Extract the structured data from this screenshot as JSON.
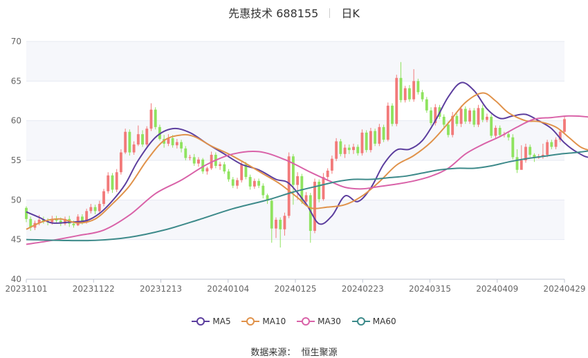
{
  "header": {
    "stock": "先惠技术 688155",
    "period": "日K"
  },
  "source": {
    "label": "数据来源：",
    "name": "恒生聚源"
  },
  "colors": {
    "up": "#f27a7a",
    "down": "#8fe35f",
    "grid": "#e6e9f2",
    "axis": "#999999"
  },
  "chart_data": {
    "type": "candlestick",
    "title": "先惠技术 688155 日K",
    "ylim": [
      40,
      70
    ],
    "yticks": [
      40,
      45,
      50,
      55,
      60,
      65,
      70
    ],
    "xticks": [
      "20231101",
      "20231122",
      "20231213",
      "20240104",
      "20240125",
      "20240223",
      "20240315",
      "20240409",
      "20240429"
    ],
    "legend": [
      "MA5",
      "MA10",
      "MA30",
      "MA60"
    ],
    "ma_colors": {
      "MA5": "#5c3e9e",
      "MA10": "#e0924a",
      "MA30": "#d962a8",
      "MA60": "#3d8a8a"
    },
    "candles": [
      [
        49.0,
        47.6,
        49.2,
        47.2
      ],
      [
        47.6,
        46.5,
        47.9,
        46.1
      ],
      [
        46.5,
        47.1,
        47.4,
        46.2
      ],
      [
        47.1,
        47.5,
        48.1,
        46.8
      ],
      [
        47.5,
        47.3,
        47.9,
        47.0
      ],
      [
        47.3,
        47.2,
        47.7,
        46.8
      ],
      [
        47.2,
        47.6,
        48.0,
        46.9
      ],
      [
        47.6,
        47.4,
        48.0,
        47.0
      ],
      [
        47.4,
        47.0,
        47.8,
        46.7
      ],
      [
        47.0,
        47.6,
        47.9,
        46.8
      ],
      [
        47.6,
        47.0,
        48.0,
        46.6
      ],
      [
        47.0,
        46.8,
        47.4,
        46.5
      ],
      [
        46.8,
        47.9,
        48.2,
        46.7
      ],
      [
        47.9,
        47.2,
        48.2,
        46.9
      ],
      [
        47.2,
        48.6,
        48.9,
        47.0
      ],
      [
        48.6,
        49.1,
        49.5,
        48.3
      ],
      [
        49.1,
        48.6,
        49.4,
        48.2
      ],
      [
        48.6,
        49.5,
        49.9,
        48.4
      ],
      [
        49.5,
        51.1,
        51.4,
        49.2
      ],
      [
        51.1,
        53.1,
        53.5,
        50.8
      ],
      [
        53.1,
        51.3,
        53.4,
        50.9
      ],
      [
        51.3,
        53.5,
        53.9,
        51.0
      ],
      [
        53.5,
        56.0,
        56.4,
        53.2
      ],
      [
        56.0,
        58.6,
        59.0,
        55.8
      ],
      [
        58.6,
        56.0,
        58.9,
        55.6
      ],
      [
        56.0,
        57.0,
        57.4,
        55.7
      ],
      [
        57.0,
        58.3,
        59.4,
        56.8
      ],
      [
        58.3,
        57.0,
        58.8,
        56.7
      ],
      [
        57.0,
        59.0,
        59.3,
        56.8
      ],
      [
        59.0,
        61.4,
        62.2,
        58.7
      ],
      [
        61.4,
        59.2,
        61.7,
        58.9
      ],
      [
        59.2,
        57.7,
        59.5,
        57.5
      ],
      [
        57.7,
        57.1,
        58.2,
        56.6
      ],
      [
        57.1,
        57.8,
        58.3,
        56.8
      ],
      [
        57.8,
        56.9,
        58.2,
        56.6
      ],
      [
        56.9,
        57.3,
        57.7,
        56.5
      ],
      [
        57.3,
        56.5,
        57.6,
        56.0
      ],
      [
        56.5,
        55.3,
        56.8,
        55.0
      ],
      [
        55.3,
        55.4,
        55.7,
        55.0
      ],
      [
        55.4,
        54.6,
        55.8,
        54.3
      ],
      [
        54.6,
        55.1,
        55.4,
        54.2
      ],
      [
        55.1,
        53.6,
        55.3,
        53.3
      ],
      [
        53.6,
        54.0,
        54.2,
        53.2
      ],
      [
        54.0,
        55.7,
        56.1,
        53.8
      ],
      [
        55.7,
        54.3,
        56.0,
        54.0
      ],
      [
        54.3,
        54.5,
        54.8,
        53.8
      ],
      [
        54.5,
        53.6,
        54.8,
        53.3
      ],
      [
        53.6,
        52.6,
        53.9,
        52.3
      ],
      [
        52.6,
        51.8,
        52.9,
        51.5
      ],
      [
        51.8,
        52.5,
        52.8,
        51.4
      ],
      [
        52.5,
        54.5,
        54.8,
        52.2
      ],
      [
        54.5,
        52.9,
        54.8,
        52.6
      ],
      [
        52.9,
        51.7,
        53.2,
        51.3
      ],
      [
        51.7,
        52.4,
        52.7,
        51.4
      ],
      [
        52.4,
        51.8,
        52.7,
        51.5
      ],
      [
        51.8,
        50.6,
        52.1,
        50.2
      ],
      [
        50.6,
        49.9,
        50.8,
        49.5
      ],
      [
        49.9,
        46.4,
        50.2,
        44.6
      ],
      [
        46.4,
        47.5,
        47.8,
        45.2
      ],
      [
        47.5,
        46.3,
        47.8,
        44.0
      ],
      [
        46.3,
        48.0,
        48.4,
        45.5
      ],
      [
        48.0,
        55.5,
        56.0,
        47.7
      ],
      [
        55.5,
        51.9,
        55.8,
        49.4
      ],
      [
        51.9,
        53.0,
        53.5,
        50.0
      ],
      [
        53.0,
        49.8,
        53.3,
        49.5
      ],
      [
        49.8,
        50.6,
        51.0,
        49.5
      ],
      [
        50.6,
        46.1,
        50.9,
        44.6
      ],
      [
        46.1,
        52.3,
        52.7,
        45.8
      ],
      [
        52.3,
        50.1,
        52.6,
        49.7
      ],
      [
        50.1,
        52.9,
        53.4,
        49.9
      ],
      [
        52.9,
        53.7,
        54.0,
        52.4
      ],
      [
        53.7,
        55.2,
        55.6,
        53.3
      ],
      [
        55.2,
        57.4,
        57.8,
        54.9
      ],
      [
        57.4,
        55.8,
        57.7,
        55.5
      ],
      [
        55.8,
        56.6,
        57.0,
        55.3
      ],
      [
        56.6,
        56.3,
        57.0,
        55.8
      ],
      [
        56.3,
        56.7,
        57.1,
        55.8
      ],
      [
        56.7,
        55.9,
        57.0,
        55.6
      ],
      [
        55.9,
        58.5,
        58.9,
        55.6
      ],
      [
        58.5,
        56.3,
        58.8,
        56.0
      ],
      [
        56.3,
        58.7,
        59.1,
        56.0
      ],
      [
        58.7,
        57.1,
        59.0,
        56.8
      ],
      [
        57.1,
        59.2,
        59.6,
        56.8
      ],
      [
        59.2,
        57.6,
        59.5,
        57.3
      ],
      [
        57.6,
        61.9,
        62.3,
        57.4
      ],
      [
        61.9,
        59.6,
        62.2,
        59.3
      ],
      [
        59.6,
        65.4,
        65.8,
        59.3
      ],
      [
        65.4,
        62.6,
        67.4,
        62.3
      ],
      [
        62.6,
        64.1,
        64.4,
        62.3
      ],
      [
        64.1,
        62.7,
        64.5,
        62.4
      ],
      [
        62.7,
        65.0,
        66.5,
        62.4
      ],
      [
        65.0,
        63.6,
        65.3,
        63.3
      ],
      [
        63.6,
        62.7,
        63.9,
        62.4
      ],
      [
        62.7,
        61.3,
        63.0,
        61.0
      ],
      [
        61.3,
        59.7,
        61.7,
        59.4
      ],
      [
        59.7,
        61.7,
        62.1,
        59.4
      ],
      [
        61.7,
        60.5,
        62.0,
        60.2
      ],
      [
        60.5,
        59.5,
        60.8,
        59.2
      ],
      [
        59.5,
        58.2,
        59.9,
        57.9
      ],
      [
        58.2,
        60.6,
        61.1,
        57.9
      ],
      [
        60.6,
        59.6,
        60.9,
        59.3
      ],
      [
        59.6,
        61.5,
        61.9,
        59.2
      ],
      [
        61.5,
        59.9,
        61.8,
        59.6
      ],
      [
        59.9,
        61.3,
        61.6,
        59.6
      ],
      [
        61.3,
        59.5,
        61.6,
        59.2
      ],
      [
        59.5,
        61.6,
        62.0,
        59.2
      ],
      [
        61.6,
        60.1,
        62.0,
        59.8
      ],
      [
        60.1,
        60.5,
        60.9,
        59.8
      ],
      [
        60.5,
        58.1,
        60.8,
        57.8
      ],
      [
        58.1,
        59.1,
        59.4,
        57.8
      ],
      [
        59.1,
        58.2,
        59.4,
        57.9
      ],
      [
        58.2,
        58.3,
        58.6,
        57.9
      ],
      [
        58.3,
        57.9,
        58.6,
        57.5
      ],
      [
        57.9,
        55.4,
        58.3,
        55.1
      ],
      [
        55.4,
        53.8,
        56.4,
        53.4
      ],
      [
        53.8,
        55.0,
        56.9,
        54.3
      ],
      [
        55.0,
        56.7,
        57.1,
        54.7
      ],
      [
        56.7,
        55.7,
        57.0,
        55.4
      ],
      [
        55.7,
        55.3,
        55.9,
        54.8
      ],
      [
        55.3,
        55.5,
        55.8,
        55.2
      ],
      [
        55.5,
        55.7,
        57.1,
        55.2
      ],
      [
        55.7,
        57.3,
        57.6,
        55.4
      ],
      [
        57.3,
        56.7,
        57.6,
        56.4
      ],
      [
        56.7,
        57.6,
        57.9,
        56.4
      ],
      [
        57.6,
        58.6,
        58.9,
        57.3
      ],
      [
        58.6,
        60.2,
        60.5,
        58.3
      ]
    ],
    "ma": {
      "MA5": [
        [
          0,
          48.5
        ],
        [
          3,
          47.8
        ],
        [
          6,
          47.1
        ],
        [
          10,
          47.2
        ],
        [
          14,
          47.4
        ],
        [
          17,
          48.3
        ],
        [
          20,
          49.9
        ],
        [
          23,
          52.0
        ],
        [
          26,
          55.0
        ],
        [
          30,
          57.9
        ],
        [
          34,
          59.0
        ],
        [
          38,
          58.5
        ],
        [
          42,
          57.1
        ],
        [
          46,
          55.8
        ],
        [
          50,
          54.5
        ],
        [
          54,
          53.8
        ],
        [
          58,
          52.6
        ],
        [
          61,
          52.1
        ],
        [
          65,
          49.5
        ],
        [
          68,
          47.0
        ],
        [
          71,
          48.0
        ],
        [
          74,
          50.5
        ],
        [
          77,
          49.8
        ],
        [
          80,
          51.5
        ],
        [
          83,
          54.5
        ],
        [
          86,
          56.3
        ],
        [
          89,
          56.4
        ],
        [
          92,
          57.5
        ],
        [
          95,
          60.0
        ],
        [
          98,
          63.0
        ],
        [
          101,
          64.8
        ],
        [
          104,
          63.8
        ],
        [
          107,
          61.5
        ],
        [
          110,
          60.3
        ],
        [
          113,
          60.6
        ],
        [
          116,
          60.8
        ],
        [
          119,
          60.0
        ],
        [
          122,
          59.0
        ],
        [
          125,
          57.2
        ],
        [
          128,
          56.0
        ],
        [
          131,
          55.4
        ],
        [
          134,
          56.6
        ],
        [
          137,
          57.3
        ],
        [
          139,
          58.3
        ]
      ],
      "MA10": [
        [
          0,
          46.3
        ],
        [
          4,
          47.3
        ],
        [
          8,
          47.6
        ],
        [
          12,
          47.1
        ],
        [
          16,
          47.6
        ],
        [
          20,
          49.5
        ],
        [
          24,
          51.8
        ],
        [
          28,
          55.0
        ],
        [
          32,
          57.5
        ],
        [
          36,
          58.2
        ],
        [
          39,
          58.0
        ],
        [
          43,
          56.8
        ],
        [
          47,
          55.8
        ],
        [
          51,
          54.6
        ],
        [
          55,
          53.3
        ],
        [
          59,
          52.0
        ],
        [
          63,
          50.3
        ],
        [
          66,
          49.0
        ],
        [
          70,
          49.1
        ],
        [
          74,
          49.4
        ],
        [
          78,
          50.5
        ],
        [
          82,
          52.3
        ],
        [
          86,
          54.4
        ],
        [
          90,
          55.6
        ],
        [
          94,
          57.3
        ],
        [
          98,
          59.7
        ],
        [
          102,
          62.3
        ],
        [
          106,
          63.5
        ],
        [
          109,
          62.5
        ],
        [
          112,
          61.0
        ],
        [
          116,
          60.0
        ],
        [
          119,
          59.9
        ],
        [
          123,
          59.2
        ],
        [
          126,
          57.9
        ],
        [
          129,
          56.6
        ],
        [
          132,
          56.2
        ],
        [
          135,
          56.4
        ],
        [
          137,
          56.5
        ],
        [
          139,
          56.8
        ]
      ],
      "MA30": [
        [
          0,
          44.4
        ],
        [
          6,
          44.9
        ],
        [
          12,
          45.5
        ],
        [
          18,
          46.2
        ],
        [
          24,
          48.1
        ],
        [
          30,
          50.8
        ],
        [
          36,
          52.5
        ],
        [
          42,
          54.5
        ],
        [
          48,
          55.8
        ],
        [
          54,
          56.1
        ],
        [
          60,
          55.1
        ],
        [
          66,
          53.5
        ],
        [
          70,
          52.5
        ],
        [
          74,
          51.6
        ],
        [
          78,
          51.4
        ],
        [
          82,
          51.7
        ],
        [
          86,
          52.0
        ],
        [
          90,
          52.4
        ],
        [
          94,
          53.0
        ],
        [
          98,
          54.0
        ],
        [
          102,
          55.8
        ],
        [
          106,
          57.0
        ],
        [
          110,
          58.0
        ],
        [
          114,
          59.2
        ],
        [
          118,
          60.2
        ],
        [
          122,
          60.4
        ],
        [
          126,
          60.6
        ],
        [
          130,
          60.5
        ],
        [
          134,
          60.1
        ],
        [
          137,
          59.3
        ],
        [
          139,
          59.0
        ]
      ],
      "MA60": [
        [
          0,
          45.0
        ],
        [
          8,
          44.9
        ],
        [
          16,
          44.9
        ],
        [
          24,
          45.3
        ],
        [
          32,
          46.2
        ],
        [
          40,
          47.5
        ],
        [
          48,
          48.9
        ],
        [
          56,
          50.0
        ],
        [
          62,
          51.0
        ],
        [
          68,
          51.8
        ],
        [
          72,
          52.3
        ],
        [
          76,
          52.6
        ],
        [
          80,
          52.6
        ],
        [
          84,
          52.8
        ],
        [
          88,
          53.0
        ],
        [
          92,
          53.4
        ],
        [
          96,
          53.8
        ],
        [
          100,
          54.0
        ],
        [
          104,
          54.0
        ],
        [
          108,
          54.3
        ],
        [
          112,
          54.8
        ],
        [
          116,
          55.2
        ],
        [
          120,
          55.5
        ],
        [
          124,
          55.8
        ],
        [
          128,
          56.0
        ],
        [
          132,
          56.3
        ],
        [
          136,
          56.7
        ],
        [
          139,
          57.4
        ]
      ]
    }
  }
}
